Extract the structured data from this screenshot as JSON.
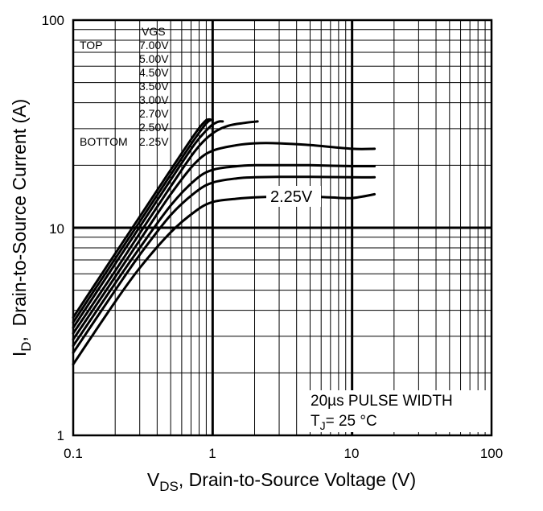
{
  "chart_data": {
    "type": "line",
    "x_scale": "log",
    "y_scale": "log",
    "xlim": [
      0.1,
      100
    ],
    "ylim": [
      1,
      100
    ],
    "grid": true,
    "x_ticks": [
      "0.1",
      "1",
      "10",
      "100"
    ],
    "y_ticks": [
      "1",
      "10",
      "100"
    ],
    "ylabel": {
      "main": "I",
      "sub": "D",
      "rest": ",  Drain-to-Source Current (A)"
    },
    "xlabel": {
      "main": "V",
      "sub": "DS",
      "rest": ", Drain-to-Source Voltage (V)"
    },
    "legend": {
      "header": "VGS",
      "top_label": "TOP",
      "bottom_label": "BOTTOM",
      "entries": [
        "7.00V",
        "5.00V",
        "4.50V",
        "3.50V",
        "3.00V",
        "2.70V",
        "2.50V",
        "2.25V"
      ],
      "placement": "top-left"
    },
    "annotations": {
      "pulse": "20µs PULSE WIDTH",
      "tj_main": "T",
      "tj_sub": "J",
      "tj_rest": "= 25 °C",
      "curve_label": "2.25V"
    },
    "series": [
      {
        "x": [
          0.1,
          0.2,
          0.3,
          0.5,
          0.75,
          0.88,
          0.93,
          0.96
        ],
        "y": [
          3.7,
          7.5,
          11.3,
          19.0,
          28.5,
          32.5,
          33.2,
          33.2
        ]
      },
      {
        "x": [
          0.1,
          0.2,
          0.3,
          0.5,
          0.75,
          0.9,
          0.97,
          1.0
        ],
        "y": [
          3.5,
          7.1,
          10.7,
          18.0,
          27.0,
          31.8,
          33.0,
          33.0
        ]
      },
      {
        "x": [
          0.1,
          0.2,
          0.3,
          0.5,
          0.75,
          0.95,
          1.05,
          1.12,
          1.18
        ],
        "y": [
          3.3,
          6.7,
          10.1,
          17.0,
          25.5,
          30.5,
          32.0,
          32.5,
          32.5
        ]
      },
      {
        "x": [
          0.1,
          0.2,
          0.3,
          0.5,
          0.75,
          1.0,
          1.3,
          1.7,
          2.1
        ],
        "y": [
          3.1,
          6.2,
          9.4,
          15.8,
          23.5,
          28.5,
          31.0,
          32.0,
          32.5
        ]
      },
      {
        "x": [
          0.1,
          0.2,
          0.3,
          0.5,
          0.75,
          1.0,
          1.5,
          2.0,
          3.0,
          5.0,
          10.0,
          14.5
        ],
        "y": [
          2.9,
          5.8,
          8.7,
          14.5,
          20.5,
          23.5,
          25.0,
          25.5,
          25.5,
          25.0,
          24.0,
          24.0
        ]
      },
      {
        "x": [
          0.1,
          0.2,
          0.3,
          0.5,
          0.75,
          1.0,
          1.5,
          2.0,
          3.0,
          5.0,
          10.0,
          14.5
        ],
        "y": [
          2.7,
          5.4,
          8.0,
          12.8,
          17.0,
          19.0,
          19.8,
          20.0,
          20.0,
          20.0,
          19.8,
          19.8
        ]
      },
      {
        "x": [
          0.1,
          0.2,
          0.3,
          0.5,
          0.75,
          1.0,
          1.5,
          2.0,
          3.0,
          5.0,
          10.0,
          14.5
        ],
        "y": [
          2.5,
          5.0,
          7.4,
          11.5,
          14.8,
          16.5,
          17.3,
          17.5,
          17.6,
          17.6,
          17.5,
          17.5
        ]
      },
      {
        "x": [
          0.1,
          0.2,
          0.3,
          0.5,
          0.75,
          1.0,
          1.5,
          2.0,
          2.8,
          5.0,
          7.0,
          10.0,
          14.5
        ],
        "y": [
          2.2,
          4.4,
          6.4,
          9.5,
          12.0,
          13.3,
          13.8,
          14.0,
          14.1,
          14.1,
          14.0,
          13.9,
          14.5
        ]
      }
    ]
  }
}
